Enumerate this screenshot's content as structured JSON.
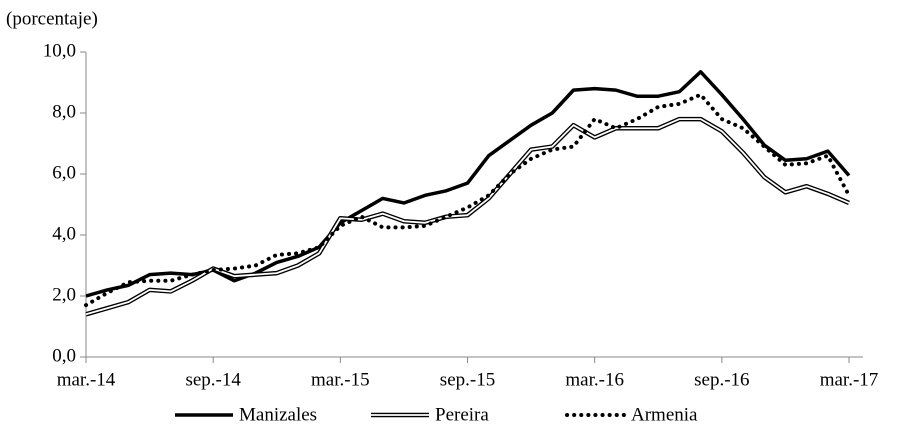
{
  "chart_data": {
    "type": "line",
    "subtitle": "(porcentaje)",
    "categories": [
      "mar.-14",
      null,
      null,
      null,
      null,
      null,
      "sep.-14",
      null,
      null,
      null,
      null,
      null,
      "mar.-15",
      null,
      null,
      null,
      null,
      null,
      "sep.-15",
      null,
      null,
      null,
      null,
      null,
      "mar.-16",
      null,
      null,
      null,
      null,
      null,
      "sep.-16",
      null,
      null,
      null,
      null,
      null,
      "mar.-17"
    ],
    "series": [
      {
        "name": "Manizales",
        "color": "#000000",
        "style": "solid",
        "values": [
          2.0,
          2.2,
          2.35,
          2.7,
          2.75,
          2.7,
          2.85,
          2.5,
          2.75,
          3.1,
          3.3,
          3.6,
          4.4,
          4.8,
          5.2,
          5.05,
          5.3,
          5.45,
          5.7,
          6.6,
          7.1,
          7.6,
          8.0,
          8.75,
          8.8,
          8.75,
          8.55,
          8.55,
          8.7,
          9.35,
          8.6,
          7.8,
          6.95,
          6.45,
          6.5,
          6.75,
          5.95
        ]
      },
      {
        "name": "Pereira",
        "color": "#000000",
        "style": "double",
        "values": [
          1.4,
          1.6,
          1.8,
          2.2,
          2.15,
          2.5,
          2.9,
          2.65,
          2.7,
          2.75,
          3.0,
          3.4,
          4.55,
          4.5,
          4.7,
          4.45,
          4.4,
          4.6,
          4.65,
          5.2,
          6.0,
          6.8,
          6.9,
          7.6,
          7.2,
          7.5,
          7.5,
          7.5,
          7.8,
          7.8,
          7.4,
          6.7,
          5.9,
          5.4,
          5.6,
          5.35,
          5.05
        ]
      },
      {
        "name": "Armenia",
        "color": "#000000",
        "style": "dotted",
        "values": [
          1.7,
          2.1,
          2.45,
          2.5,
          2.5,
          2.7,
          2.85,
          2.9,
          3.0,
          3.35,
          3.4,
          3.6,
          4.3,
          4.6,
          4.25,
          4.25,
          4.3,
          4.6,
          4.9,
          5.3,
          6.0,
          6.5,
          6.8,
          6.9,
          7.8,
          7.5,
          7.8,
          8.2,
          8.3,
          8.6,
          7.8,
          7.5,
          6.9,
          6.3,
          6.35,
          6.6,
          5.3
        ]
      }
    ],
    "ylim": [
      0,
      10
    ],
    "yticks": [
      {
        "value": 0,
        "label": "0,0"
      },
      {
        "value": 2,
        "label": "2,0"
      },
      {
        "value": 4,
        "label": "4,0"
      },
      {
        "value": 6,
        "label": "6,0"
      },
      {
        "value": 8,
        "label": "8,0"
      },
      {
        "value": 10,
        "label": "10,0"
      }
    ],
    "grid": false,
    "legend": "bottom"
  }
}
